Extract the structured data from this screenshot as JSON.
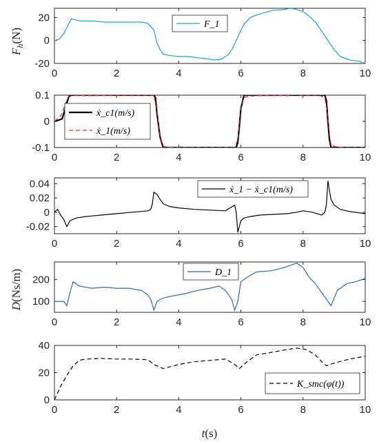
{
  "chart_data": [
    {
      "type": "line",
      "ylabel": "F_h(N)",
      "xlim": [
        0,
        10
      ],
      "ylim": [
        -20,
        28
      ],
      "xticks": [
        0,
        2,
        4,
        6,
        8,
        10
      ],
      "yticks": [
        -20,
        0,
        20
      ],
      "xticklabels": [
        "0",
        "2",
        "4",
        "6",
        "8",
        "10"
      ],
      "yticklabels": [
        "-20",
        "0",
        "20"
      ],
      "legend_position": "top-center",
      "series": [
        {
          "name": "F_1",
          "color": "#1a9ed1",
          "style": "solid",
          "x": [
            0,
            0.15,
            0.3,
            0.45,
            0.55,
            0.8,
            1.2,
            1.6,
            2.0,
            2.4,
            2.8,
            3.0,
            3.2,
            3.3,
            3.4,
            3.5,
            3.7,
            4.0,
            4.3,
            4.6,
            4.9,
            5.2,
            5.4,
            5.6,
            5.75,
            5.85,
            5.95,
            6.1,
            6.3,
            6.6,
            7.0,
            7.4,
            7.6,
            7.8,
            8.0,
            8.2,
            8.4,
            8.6,
            8.8,
            9.0,
            9.2,
            9.5,
            9.8,
            10.0
          ],
          "y": [
            0,
            1,
            6,
            14,
            19,
            17,
            17,
            16,
            16,
            16,
            16,
            15,
            9,
            -2,
            -8,
            -12,
            -13,
            -14,
            -14,
            -15,
            -16,
            -17,
            -16,
            -12,
            -6,
            0,
            6,
            14,
            20,
            23,
            26,
            27,
            28,
            27,
            25,
            21,
            16,
            8,
            0,
            -8,
            -14,
            -17,
            -18,
            -20
          ]
        }
      ]
    },
    {
      "type": "line",
      "ylabel": "",
      "xlim": [
        0,
        10
      ],
      "ylim": [
        -0.1,
        0.1
      ],
      "xticks": [
        0,
        2,
        4,
        6,
        8,
        10
      ],
      "yticks": [
        -0.1,
        0,
        0.1
      ],
      "xticklabels": [
        "0",
        "2",
        "4",
        "6",
        "8",
        "10"
      ],
      "yticklabels": [
        "-0.1",
        "0",
        "0.1"
      ],
      "legend_position": "bottom-left",
      "series": [
        {
          "name": "ẋ_c1(m/s)",
          "color": "#000000",
          "style": "solid",
          "x": [
            0,
            0.15,
            0.25,
            0.35,
            0.45,
            0.5,
            3.2,
            3.25,
            3.3,
            3.4,
            3.5,
            5.85,
            5.9,
            5.95,
            6.0,
            6.1,
            8.7,
            8.75,
            8.8,
            8.85,
            8.9,
            10.0
          ],
          "y": [
            0,
            0.005,
            0.01,
            0.05,
            0.09,
            0.1,
            0.1,
            0.09,
            0.03,
            -0.06,
            -0.1,
            -0.1,
            -0.08,
            -0.02,
            0.05,
            0.1,
            0.1,
            0.08,
            0.0,
            -0.07,
            -0.1,
            -0.1
          ]
        },
        {
          "name": "ẋ_1(m/s)",
          "color": "#e0242b",
          "style": "dashed",
          "x": [
            0,
            0.1,
            0.2,
            0.3,
            0.4,
            0.5,
            0.6,
            1.0,
            2.0,
            3.0,
            3.2,
            3.3,
            3.4,
            3.5,
            3.6,
            4.0,
            5.0,
            5.8,
            5.9,
            5.95,
            6.0,
            6.1,
            6.2,
            6.5,
            7.0,
            7.5,
            7.7,
            7.9,
            8.5,
            8.7,
            8.8,
            8.85,
            8.9,
            9.0,
            9.3,
            10.0
          ],
          "y": [
            0,
            0.01,
            0.02,
            0.05,
            0.08,
            0.095,
            0.1,
            0.098,
            0.1,
            0.1,
            0.1,
            0.04,
            -0.06,
            -0.095,
            -0.098,
            -0.1,
            -0.1,
            -0.1,
            -0.07,
            0.0,
            0.06,
            0.09,
            0.095,
            0.098,
            0.1,
            0.098,
            0.105,
            0.1,
            0.1,
            0.09,
            0.02,
            -0.05,
            -0.09,
            -0.095,
            -0.1,
            -0.1
          ]
        }
      ]
    },
    {
      "type": "line",
      "ylabel": "",
      "xlim": [
        0,
        10
      ],
      "ylim": [
        -0.03,
        0.048
      ],
      "xticks": [
        0,
        2,
        4,
        6,
        8,
        10
      ],
      "yticks": [
        -0.02,
        0,
        0.02,
        0.04
      ],
      "xticklabels": [
        "0",
        "2",
        "4",
        "6",
        "8",
        "10"
      ],
      "yticklabels": [
        "-0.02",
        "0",
        "0.02",
        "0.04"
      ],
      "legend_position": "top-right",
      "series": [
        {
          "name": "ẋ_1 − ẋ_c1(m/s)",
          "color": "#000000",
          "style": "solid",
          "x": [
            0,
            0.1,
            0.2,
            0.3,
            0.4,
            0.5,
            0.7,
            1.0,
            1.5,
            2.0,
            2.5,
            3.0,
            3.1,
            3.15,
            3.2,
            3.3,
            3.4,
            3.5,
            3.7,
            4.0,
            4.5,
            5.0,
            5.5,
            5.8,
            5.85,
            5.9,
            5.95,
            6.0,
            6.1,
            6.3,
            6.6,
            7.0,
            7.5,
            7.8,
            8.0,
            8.3,
            8.6,
            8.7,
            8.75,
            8.8,
            8.85,
            8.9,
            9.0,
            9.2,
            9.5,
            10.0
          ],
          "y": [
            0,
            0.004,
            -0.004,
            -0.01,
            -0.02,
            -0.012,
            -0.008,
            -0.006,
            -0.004,
            -0.002,
            0,
            0.002,
            0.004,
            0.012,
            0.028,
            0.025,
            0.018,
            0.012,
            0.008,
            0.006,
            0.004,
            0.003,
            0.002,
            0.01,
            0.0,
            -0.028,
            -0.02,
            -0.012,
            -0.008,
            -0.006,
            -0.004,
            -0.003,
            -0.002,
            0.0,
            0.002,
            0.0,
            -0.004,
            0.0,
            0.01,
            0.044,
            0.03,
            0.018,
            0.01,
            0.004,
            0.001,
            -0.002
          ]
        }
      ]
    },
    {
      "type": "line",
      "ylabel": "D(Ns/m)",
      "xlim": [
        0,
        10
      ],
      "ylim": [
        50,
        280
      ],
      "xticks": [
        0,
        2,
        4,
        6,
        8,
        10
      ],
      "yticks": [
        100,
        200
      ],
      "xticklabels": [
        "0",
        "2",
        "4",
        "6",
        "8",
        "10"
      ],
      "yticklabels": [
        "100",
        "200"
      ],
      "legend_position": "top-center",
      "series": [
        {
          "name": "D_1",
          "color": "#2a6bb5",
          "style": "solid",
          "x": [
            0,
            0.3,
            0.4,
            0.5,
            0.6,
            0.8,
            1.2,
            1.6,
            2.0,
            2.4,
            2.8,
            3.0,
            3.1,
            3.2,
            3.3,
            3.5,
            3.8,
            4.2,
            4.6,
            5.0,
            5.3,
            5.5,
            5.7,
            5.8,
            5.9,
            6.0,
            6.2,
            6.5,
            7.0,
            7.4,
            7.8,
            8.0,
            8.2,
            8.4,
            8.6,
            8.8,
            8.9,
            9.1,
            9.4,
            9.7,
            10.0
          ],
          "y": [
            100,
            100,
            80,
            140,
            190,
            170,
            160,
            165,
            160,
            160,
            150,
            130,
            110,
            60,
            100,
            115,
            125,
            135,
            150,
            160,
            170,
            150,
            110,
            60,
            100,
            190,
            210,
            235,
            240,
            255,
            275,
            255,
            210,
            180,
            140,
            100,
            80,
            150,
            180,
            190,
            205
          ]
        }
      ]
    },
    {
      "type": "line",
      "ylabel": "",
      "xlim": [
        0,
        10
      ],
      "ylim": [
        0,
        40
      ],
      "xticks": [
        0,
        2,
        4,
        6,
        8,
        10
      ],
      "yticks": [
        0,
        20,
        40
      ],
      "xticklabels": [
        "0",
        "2",
        "4",
        "6",
        "8",
        "10"
      ],
      "yticklabels": [
        "0",
        "20",
        "40"
      ],
      "xlabel": "t(s)",
      "legend_position": "bottom-right",
      "series": [
        {
          "name": "K_smc(φ(t))",
          "color": "#000000",
          "style": "dashed",
          "x": [
            0,
            0.2,
            0.4,
            0.6,
            0.8,
            1.0,
            1.5,
            2.0,
            2.5,
            3.0,
            3.2,
            3.5,
            4.0,
            4.5,
            5.0,
            5.5,
            5.8,
            5.95,
            6.2,
            6.5,
            7.0,
            7.5,
            7.8,
            8.1,
            8.4,
            8.6,
            8.75,
            9.0,
            9.5,
            10.0
          ],
          "y": [
            0,
            10,
            18,
            25,
            29,
            30,
            30.5,
            30,
            30,
            29.5,
            26,
            23,
            26,
            28,
            29,
            30,
            26,
            23,
            28,
            33,
            35,
            37,
            38,
            37,
            33,
            28,
            25,
            27,
            30,
            32
          ]
        }
      ]
    }
  ]
}
